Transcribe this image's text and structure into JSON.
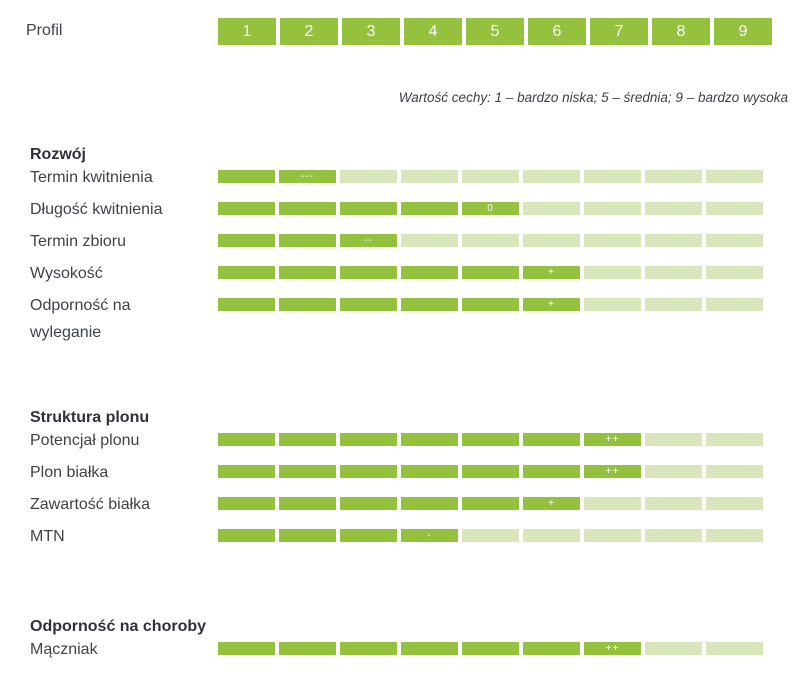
{
  "header": {
    "label": "Profil",
    "note": "Wartość cechy: 1 – bardzo niska; 5 – średnia; 9 – bardzo wysoka"
  },
  "colors": {
    "filled_segment": "#94c13e",
    "empty_segment": "#d9e6bc",
    "header_box": "#94c13e",
    "marker_text": "#ffffff",
    "label_text": "#3f4246",
    "section_title_text": "#303136"
  },
  "chart_data": {
    "type": "bar",
    "orientation": "horizontal",
    "title": "Profil",
    "scale": [
      "1",
      "2",
      "3",
      "4",
      "5",
      "6",
      "7",
      "8",
      "9"
    ],
    "scale_note": "Wartość cechy: 1 – bardzo niska; 5 – średnia; 9 – bardzo wysoka",
    "xlim": [
      0,
      9
    ],
    "grid": false,
    "legend": false,
    "groups": [
      {
        "name": "Rozwój",
        "rows": [
          {
            "label": "Termin kwitnienia",
            "value": 2,
            "marker": "---"
          },
          {
            "label": "Długość kwitnienia",
            "value": 5,
            "marker": "0"
          },
          {
            "label": "Termin zbioru",
            "value": 3,
            "marker": "--"
          },
          {
            "label": "Wysokość",
            "value": 6,
            "marker": "+"
          },
          {
            "label": "Odporność na wyleganie",
            "value": 6,
            "marker": "+"
          }
        ]
      },
      {
        "name": "Struktura plonu",
        "rows": [
          {
            "label": "Potencjał plonu",
            "value": 7,
            "marker": "++"
          },
          {
            "label": "Plon białka",
            "value": 7,
            "marker": "++"
          },
          {
            "label": "Zawartość białka",
            "value": 6,
            "marker": "+"
          },
          {
            "label": "MTN",
            "value": 4,
            "marker": "-"
          }
        ]
      },
      {
        "name": "Odporność na choroby",
        "rows": [
          {
            "label": "Mączniak",
            "value": 7,
            "marker": "++"
          }
        ]
      }
    ]
  }
}
